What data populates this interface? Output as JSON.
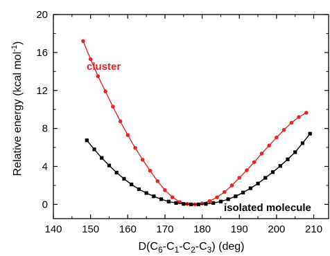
{
  "chart_data": {
    "type": "line",
    "title": "",
    "xlabel": {
      "main": "D(C",
      "s1": "6",
      "sep1": "-C",
      "s2": "1",
      "sep2": "-C",
      "s3": "2",
      "sep3": "-C",
      "s4": "3",
      "unit": ") (deg)"
    },
    "ylabel": {
      "main": "Relative energy (kcal mol",
      "sup": "-1",
      "close": ")"
    },
    "xlim": [
      140,
      214
    ],
    "ylim": [
      -1.5,
      20
    ],
    "xticks": [
      140,
      150,
      160,
      170,
      180,
      190,
      200,
      210
    ],
    "yticks": [
      0,
      4,
      8,
      12,
      16,
      20
    ],
    "grid": false,
    "legend": "none",
    "series": [
      {
        "name": "cluster",
        "color": "#e8242a",
        "marker": "circle",
        "x": [
          148,
          150,
          152,
          154,
          156,
          158,
          160,
          162,
          164,
          166,
          168,
          170,
          172,
          174,
          176,
          178,
          180,
          182,
          184,
          186,
          188,
          190,
          192,
          194,
          196,
          198,
          200,
          202,
          204,
          206,
          208
        ],
        "y": [
          17.2,
          15.3,
          13.5,
          11.9,
          10.3,
          8.75,
          7.3,
          5.95,
          4.7,
          3.55,
          2.45,
          1.5,
          0.75,
          0.25,
          0.05,
          0.0,
          0.1,
          0.35,
          0.75,
          1.3,
          2.0,
          2.8,
          3.6,
          4.45,
          5.35,
          6.2,
          7.05,
          7.85,
          8.6,
          9.2,
          9.65
        ]
      },
      {
        "name": "isolated molecule",
        "color": "#000000",
        "marker": "square",
        "x": [
          149,
          151,
          153,
          155,
          157,
          159,
          161,
          163,
          165,
          167,
          169,
          171,
          173,
          175,
          177,
          179,
          181,
          183,
          185,
          187,
          189,
          191,
          193,
          195,
          197,
          199,
          201,
          203,
          205,
          207,
          209
        ],
        "y": [
          6.75,
          5.8,
          4.9,
          4.1,
          3.35,
          2.7,
          2.1,
          1.6,
          1.2,
          0.85,
          0.55,
          0.3,
          0.15,
          0.05,
          0.0,
          0.0,
          0.05,
          0.15,
          0.3,
          0.55,
          0.85,
          1.25,
          1.7,
          2.2,
          2.8,
          3.4,
          4.05,
          4.75,
          5.5,
          6.45,
          7.45
        ]
      }
    ]
  }
}
